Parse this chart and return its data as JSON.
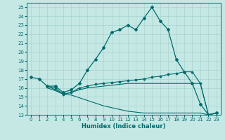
{
  "xlabel": "Humidex (Indice chaleur)",
  "bg_color": "#c5e8e5",
  "line_color": "#006b6b",
  "grid_color": "#a8d5d0",
  "xlim": [
    -0.5,
    23.5
  ],
  "ylim": [
    13,
    25.5
  ],
  "yticks": [
    13,
    14,
    15,
    16,
    17,
    18,
    19,
    20,
    21,
    22,
    23,
    24,
    25
  ],
  "xticks": [
    0,
    1,
    2,
    3,
    4,
    5,
    6,
    7,
    8,
    9,
    10,
    11,
    12,
    13,
    14,
    15,
    16,
    17,
    18,
    19,
    20,
    21,
    22,
    23
  ],
  "line1_x": [
    0,
    1,
    2,
    3,
    4,
    5,
    6,
    7,
    8,
    9,
    10,
    11,
    12,
    13,
    14,
    15,
    16,
    17,
    18,
    19,
    20,
    21,
    22,
    23
  ],
  "line1_y": [
    17.2,
    17.0,
    16.2,
    16.2,
    15.5,
    15.8,
    16.5,
    18.0,
    19.2,
    20.5,
    22.2,
    22.5,
    23.0,
    22.5,
    23.8,
    25.0,
    23.5,
    22.5,
    19.2,
    17.8,
    16.5,
    14.2,
    13.0,
    13.2
  ],
  "line2_x": [
    2,
    3,
    4,
    5,
    6,
    7,
    8,
    9,
    10,
    11,
    12,
    13,
    14,
    15,
    16,
    17,
    18,
    19,
    20,
    21,
    22,
    23
  ],
  "line2_y": [
    16.2,
    16.0,
    15.3,
    15.5,
    16.0,
    16.2,
    16.4,
    16.5,
    16.6,
    16.7,
    16.8,
    16.9,
    17.0,
    17.2,
    17.3,
    17.5,
    17.6,
    17.8,
    17.8,
    16.5,
    13.0,
    13.2
  ],
  "line3_x": [
    2,
    3,
    4,
    5,
    6,
    7,
    8,
    9,
    10,
    11,
    12,
    13,
    14,
    15,
    16,
    17,
    18,
    19,
    20,
    21,
    22,
    23
  ],
  "line3_y": [
    16.2,
    15.8,
    15.3,
    15.5,
    15.8,
    16.0,
    16.1,
    16.2,
    16.3,
    16.4,
    16.5,
    16.5,
    16.5,
    16.5,
    16.5,
    16.5,
    16.5,
    16.5,
    16.5,
    16.5,
    13.0,
    13.2
  ],
  "line4_x": [
    2,
    3,
    4,
    5,
    6,
    7,
    8,
    9,
    10,
    11,
    12,
    13,
    14,
    15,
    16,
    17,
    18,
    19,
    20,
    21,
    22,
    23
  ],
  "line4_y": [
    16.0,
    15.7,
    15.3,
    15.2,
    14.9,
    14.6,
    14.3,
    14.0,
    13.8,
    13.6,
    13.4,
    13.3,
    13.2,
    13.2,
    13.2,
    13.2,
    13.2,
    13.2,
    13.2,
    13.2,
    13.0,
    13.2
  ]
}
